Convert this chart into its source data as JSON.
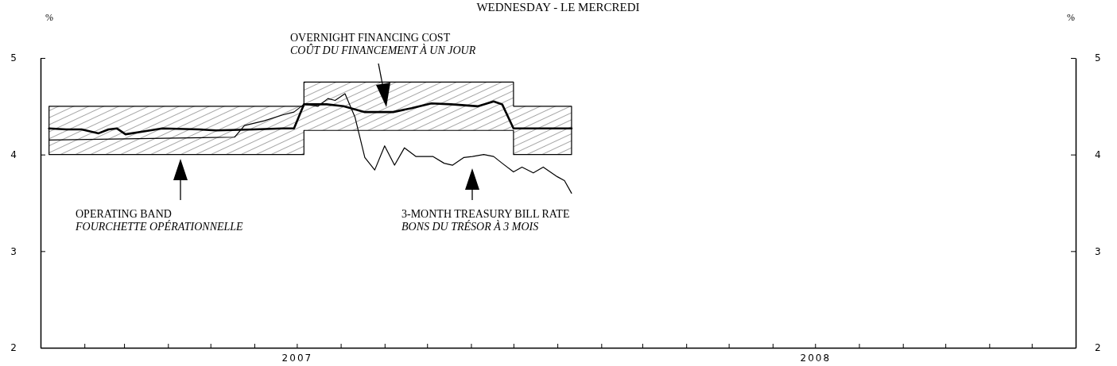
{
  "chart_data": {
    "type": "line",
    "title": "WEDNESDAY - LE MERCREDI",
    "ylabel": "%",
    "y2label": "%",
    "xlim": [
      "2007-01-01",
      "2009-01-01"
    ],
    "xticks": [
      {
        "value": "2007-02-01",
        "label": null
      },
      {
        "value": "2007-03-01",
        "label": null
      },
      {
        "value": "2007-04-01",
        "label": null
      },
      {
        "value": "2007-05-01",
        "label": null
      },
      {
        "value": "2007-06-01",
        "label": null
      },
      {
        "value": "2007-07-01",
        "label": "2007"
      },
      {
        "value": "2007-08-01",
        "label": null
      },
      {
        "value": "2007-09-01",
        "label": null
      },
      {
        "value": "2007-10-01",
        "label": null
      },
      {
        "value": "2007-11-01",
        "label": null
      },
      {
        "value": "2007-12-01",
        "label": null
      },
      {
        "value": "2008-01-01",
        "label": null
      },
      {
        "value": "2008-02-01",
        "label": null
      },
      {
        "value": "2008-03-01",
        "label": null
      },
      {
        "value": "2008-04-01",
        "label": null
      },
      {
        "value": "2008-05-01",
        "label": null
      },
      {
        "value": "2008-06-01",
        "label": null
      },
      {
        "value": "2008-07-01",
        "label": "2008"
      },
      {
        "value": "2008-08-01",
        "label": null
      },
      {
        "value": "2008-09-01",
        "label": null
      },
      {
        "value": "2008-10-01",
        "label": null
      },
      {
        "value": "2008-11-01",
        "label": null
      },
      {
        "value": "2008-12-01",
        "label": null
      }
    ],
    "ylim": [
      2,
      5
    ],
    "yticks": [
      2,
      3,
      4,
      5
    ],
    "y2lim": [
      2,
      5
    ],
    "y2ticks": [
      2,
      3,
      4,
      5
    ],
    "grid": false,
    "series": [
      {
        "color": "#000000",
        "x": [
          "2007-01-07",
          "2007-01-19",
          "2007-01-30",
          "2007-02-11",
          "2007-02-18",
          "2007-02-24",
          "2007-03-02",
          "2007-03-15",
          "2007-03-28",
          "2007-04-23",
          "2007-05-05",
          "2007-06-01",
          "2007-06-21",
          "2007-06-29",
          "2007-07-06",
          "2007-07-06",
          "2007-07-22",
          "2007-08-03",
          "2007-08-18",
          "2007-09-07",
          "2007-09-20",
          "2007-10-04",
          "2007-10-18",
          "2007-11-06",
          "2007-11-17",
          "2007-11-23",
          "2007-12-01",
          "2007-12-01",
          "2007-12-24",
          "2008-01-11"
        ],
        "values": [
          4.27,
          4.26,
          4.26,
          4.22,
          4.26,
          4.27,
          4.21,
          4.24,
          4.27,
          4.26,
          4.25,
          4.26,
          4.27,
          4.27,
          4.52,
          4.52,
          4.52,
          4.5,
          4.44,
          4.44,
          4.48,
          4.53,
          4.52,
          4.5,
          4.55,
          4.52,
          4.27,
          4.27,
          4.27,
          4.27
        ],
        "lower": [
          4,
          4,
          4,
          4,
          4,
          4,
          4,
          4,
          4,
          4,
          4,
          4,
          4,
          4,
          4,
          4.25,
          4.25,
          4.25,
          4.25,
          4.25,
          4.25,
          4.25,
          4.25,
          4.25,
          4.25,
          4.25,
          4.25,
          4,
          4,
          4
        ],
        "upper": [
          4.5,
          4.5,
          4.5,
          4.5,
          4.5,
          4.5,
          4.5,
          4.5,
          4.5,
          4.5,
          4.5,
          4.5,
          4.5,
          4.5,
          4.5,
          4.75,
          4.75,
          4.75,
          4.75,
          4.75,
          4.75,
          4.75,
          4.75,
          4.75,
          4.75,
          4.75,
          4.75,
          4.5,
          4.5,
          4.5
        ]
      },
      {
        "color": "#000000",
        "x": [
          "2007-01-07",
          "2007-05-18",
          "2007-05-25",
          "2007-06-08",
          "2007-06-21",
          "2007-06-29",
          "2007-07-06",
          "2007-07-16",
          "2007-07-23",
          "2007-07-28",
          "2007-08-04",
          "2007-08-11",
          "2007-08-18",
          "2007-08-25",
          "2007-09-01",
          "2007-09-08",
          "2007-09-15",
          "2007-09-23",
          "2007-10-05",
          "2007-10-13",
          "2007-10-19",
          "2007-10-27",
          "2007-11-02",
          "2007-11-10",
          "2007-11-17",
          "2007-11-23",
          "2007-12-01",
          "2007-12-07",
          "2007-12-15",
          "2007-12-22",
          "2008-01-01",
          "2008-01-06",
          "2008-01-11"
        ],
        "values": [
          4.15,
          4.18,
          4.3,
          4.35,
          4.41,
          4.44,
          4.52,
          4.5,
          4.58,
          4.56,
          4.63,
          4.39,
          3.97,
          3.84,
          4.09,
          3.89,
          4.07,
          3.98,
          3.98,
          3.91,
          3.89,
          3.97,
          3.98,
          4.0,
          3.98,
          3.91,
          3.82,
          3.87,
          3.81,
          3.87,
          3.77,
          3.73,
          3.6
        ]
      }
    ],
    "annotations": [
      "OVERNIGHT FINANCING COST\nCOÛT DU FINANCEMENT À UN JOUR",
      "OPERATING BAND\nFOURCHETTE OPÉRATIONNELLE",
      "3-MONTH TREASURY BILL RATE\nBONS DU TRÉSOR À 3 MOIS"
    ]
  }
}
